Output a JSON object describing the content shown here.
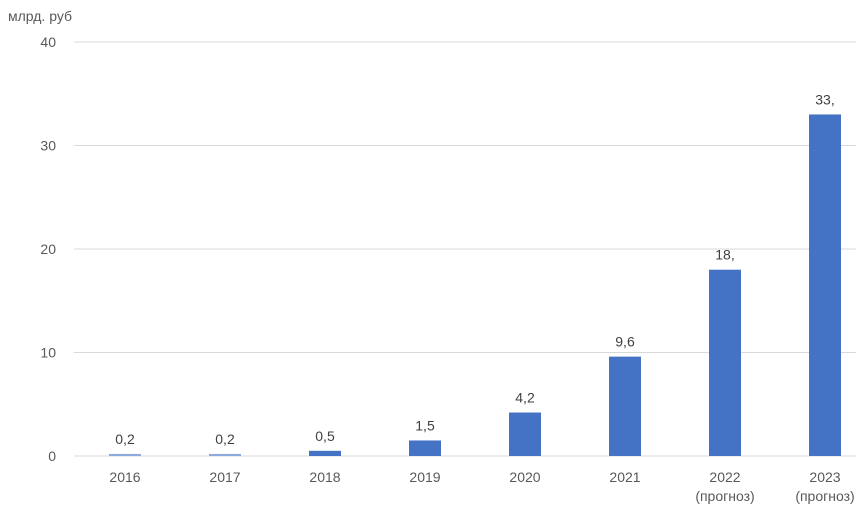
{
  "chart_data": {
    "type": "bar",
    "ylabel": "млрд. руб",
    "xlabel": "",
    "ylim": [
      0,
      40
    ],
    "yticks": [
      0,
      10,
      20,
      30,
      40
    ],
    "grid": true,
    "categories": [
      [
        "2016"
      ],
      [
        "2017"
      ],
      [
        "2018"
      ],
      [
        "2019"
      ],
      [
        "2020"
      ],
      [
        "2021"
      ],
      [
        "2022",
        "(прогноз)"
      ],
      [
        "2023",
        "(прогноз)"
      ]
    ],
    "values": [
      0.2,
      0.2,
      0.5,
      1.5,
      4.2,
      9.6,
      18,
      33
    ],
    "data_labels": [
      "0,2",
      "0,2",
      "0,5",
      "1,5",
      "4,2",
      "9,6",
      "18,",
      "33,"
    ],
    "colors": [
      "#8faadc",
      "#8faadc",
      "#4472c4",
      "#4472c4",
      "#4472c4",
      "#4472c4",
      "#4472c4",
      "#4472c4"
    ],
    "gridline_color": "#d9d9d9"
  }
}
